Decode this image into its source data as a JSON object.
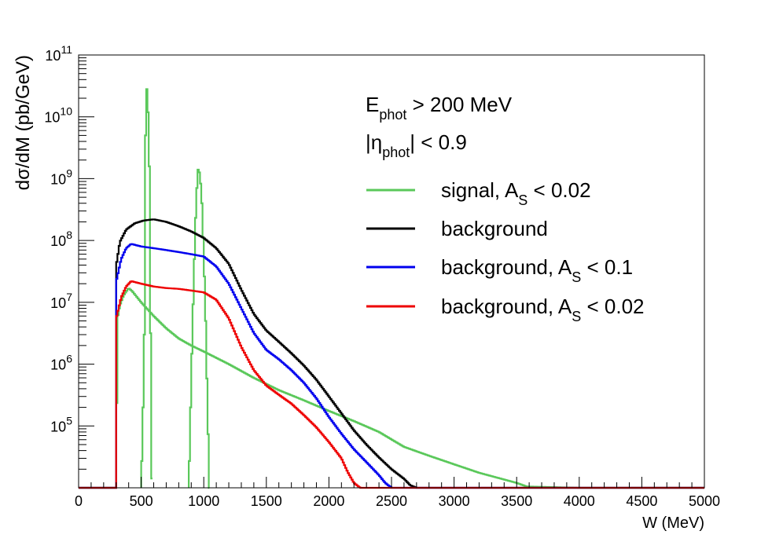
{
  "chart_data": {
    "type": "line",
    "xlabel": "W (MeV)",
    "ylabel": "dσ/dM (pb/GeV)",
    "x_ticks": [
      "0",
      "500",
      "1000",
      "1500",
      "2000",
      "2500",
      "3000",
      "3500",
      "4000",
      "4500",
      "5000"
    ],
    "xlim": [
      0,
      5000
    ],
    "ylim": [
      10000,
      100000000000
    ],
    "y_scale": "log",
    "y_ticks": [
      {
        "base": "10",
        "exp": "5",
        "value": 100000
      },
      {
        "base": "10",
        "exp": "6",
        "value": 1000000
      },
      {
        "base": "10",
        "exp": "7",
        "value": 10000000
      },
      {
        "base": "10",
        "exp": "8",
        "value": 100000000
      },
      {
        "base": "10",
        "exp": "9",
        "value": 1000000000
      },
      {
        "base": "10",
        "exp": "10",
        "value": 10000000000
      },
      {
        "base": "10",
        "exp": "11",
        "value": 100000000000
      }
    ],
    "annotations": [
      {
        "main": "E",
        "sub": "phot",
        "rest": " > 200 MeV"
      },
      {
        "main": "|η",
        "sub": "phot",
        "rest": "| < 0.9"
      }
    ],
    "series": [
      {
        "name": "signal, A_S < 0.02",
        "legend_main": "signal, A",
        "legend_sub": "S",
        "legend_rest": " < 0.02",
        "color": "#5ac85a",
        "points": [
          [
            0,
            10000
          ],
          [
            300,
            10000
          ],
          [
            310,
            5500000
          ],
          [
            330,
            9000000
          ],
          [
            360,
            13000000
          ],
          [
            400,
            17000000
          ],
          [
            430,
            15000000
          ],
          [
            500,
            10000000
          ],
          [
            600,
            6000000
          ],
          [
            700,
            3800000
          ],
          [
            800,
            2600000
          ],
          [
            900,
            2000000
          ],
          [
            1000,
            1600000
          ],
          [
            1200,
            1000000
          ],
          [
            1400,
            600000
          ],
          [
            1600,
            380000
          ],
          [
            1800,
            260000
          ],
          [
            2000,
            175000
          ],
          [
            2200,
            120000
          ],
          [
            2400,
            80000
          ],
          [
            2600,
            46000
          ],
          [
            2800,
            33000
          ],
          [
            3000,
            24000
          ],
          [
            3200,
            17500
          ],
          [
            3500,
            12000
          ],
          [
            3580,
            10500
          ],
          [
            4000,
            10000
          ],
          [
            4200,
            10000
          ],
          [
            5000,
            10000
          ]
        ],
        "peaks": [
          {
            "points": [
              [
                500,
                10000
              ],
              [
                515,
                200000
              ],
              [
                525,
                3000000
              ],
              [
                535,
                5000000000
              ],
              [
                545,
                28000000000
              ],
              [
                550,
                28000000000
              ],
              [
                560,
                5000000000
              ],
              [
                570,
                500000000
              ],
              [
                580,
                20000
              ],
              [
                590,
                10000
              ]
            ]
          },
          {
            "points": [
              [
                880,
                10000
              ],
              [
                895,
                200000
              ],
              [
                910,
                4000000
              ],
              [
                925,
                50000000
              ],
              [
                940,
                500000000
              ],
              [
                955,
                1400000000
              ],
              [
                970,
                1200000000
              ],
              [
                985,
                400000000
              ],
              [
                1000,
                60000000
              ],
              [
                1015,
                5000000
              ],
              [
                1030,
                200000
              ],
              [
                1045,
                10000
              ]
            ]
          }
        ]
      },
      {
        "name": "background",
        "legend_main": "background",
        "legend_sub": "",
        "legend_rest": "",
        "color": "#000000",
        "points": [
          [
            0,
            10000
          ],
          [
            300,
            10000
          ],
          [
            305,
            45000000
          ],
          [
            330,
            95000000
          ],
          [
            380,
            150000000
          ],
          [
            450,
            190000000
          ],
          [
            520,
            210000000
          ],
          [
            600,
            220000000
          ],
          [
            700,
            200000000
          ],
          [
            800,
            170000000
          ],
          [
            900,
            140000000
          ],
          [
            1000,
            110000000
          ],
          [
            1100,
            75000000
          ],
          [
            1200,
            42000000
          ],
          [
            1300,
            16000000
          ],
          [
            1400,
            6500000
          ],
          [
            1500,
            3500000
          ],
          [
            1600,
            2300000
          ],
          [
            1700,
            1500000
          ],
          [
            1800,
            950000
          ],
          [
            1900,
            560000
          ],
          [
            2000,
            300000
          ],
          [
            2100,
            160000
          ],
          [
            2200,
            85000
          ],
          [
            2300,
            50000
          ],
          [
            2400,
            31000
          ],
          [
            2500,
            20000
          ],
          [
            2600,
            14000
          ],
          [
            2650,
            11000
          ],
          [
            2700,
            10000
          ],
          [
            5000,
            10000
          ]
        ]
      },
      {
        "name": "background, A_S < 0.1",
        "legend_main": "background, A",
        "legend_sub": "S",
        "legend_rest": " < 0.1",
        "color": "#0000ee",
        "points": [
          [
            0,
            10000
          ],
          [
            300,
            10000
          ],
          [
            305,
            24000000
          ],
          [
            340,
            50000000
          ],
          [
            380,
            75000000
          ],
          [
            420,
            88000000
          ],
          [
            500,
            80000000
          ],
          [
            600,
            75000000
          ],
          [
            700,
            70000000
          ],
          [
            800,
            65000000
          ],
          [
            900,
            60000000
          ],
          [
            1000,
            55000000
          ],
          [
            1100,
            38000000
          ],
          [
            1200,
            20000000
          ],
          [
            1300,
            8000000
          ],
          [
            1400,
            3200000
          ],
          [
            1500,
            1700000
          ],
          [
            1600,
            1200000
          ],
          [
            1700,
            800000
          ],
          [
            1800,
            500000
          ],
          [
            1900,
            280000
          ],
          [
            2000,
            140000
          ],
          [
            2100,
            75000
          ],
          [
            2200,
            42000
          ],
          [
            2300,
            26000
          ],
          [
            2400,
            16000
          ],
          [
            2450,
            12000
          ],
          [
            2500,
            10000
          ],
          [
            5000,
            10000
          ]
        ]
      },
      {
        "name": "background, A_S < 0.02",
        "legend_main": "background, A",
        "legend_sub": "S",
        "legend_rest": " < 0.02",
        "color": "#ee0000",
        "points": [
          [
            0,
            10000
          ],
          [
            300,
            10000
          ],
          [
            305,
            6000000
          ],
          [
            340,
            12000000
          ],
          [
            380,
            18000000
          ],
          [
            420,
            22000000
          ],
          [
            500,
            20000000
          ],
          [
            600,
            18000000
          ],
          [
            700,
            17000000
          ],
          [
            800,
            16500000
          ],
          [
            900,
            15500000
          ],
          [
            1000,
            14500000
          ],
          [
            1100,
            11000000
          ],
          [
            1200,
            5500000
          ],
          [
            1300,
            1900000
          ],
          [
            1400,
            800000
          ],
          [
            1500,
            450000
          ],
          [
            1600,
            320000
          ],
          [
            1700,
            230000
          ],
          [
            1800,
            150000
          ],
          [
            1900,
            95000
          ],
          [
            2000,
            55000
          ],
          [
            2100,
            30000
          ],
          [
            2150,
            18000
          ],
          [
            2200,
            12000
          ],
          [
            2250,
            10000
          ],
          [
            5000,
            10000
          ]
        ]
      }
    ]
  }
}
